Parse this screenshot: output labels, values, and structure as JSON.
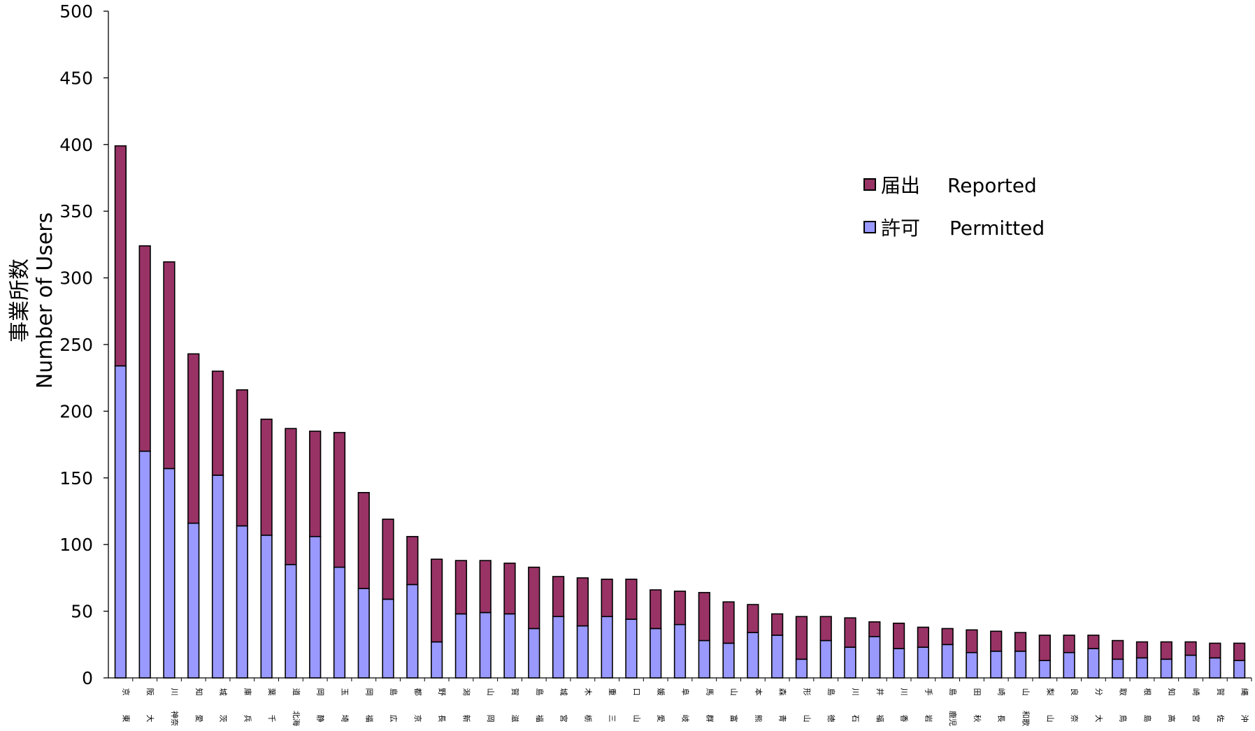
{
  "chart_data": {
    "type": "bar",
    "stacked": true,
    "ylabel_ja": "事業所数",
    "ylabel_en": "Number of Users",
    "xlabel": "",
    "ylim": [
      0,
      500
    ],
    "yticks": [
      0,
      50,
      100,
      150,
      200,
      250,
      300,
      350,
      400,
      450,
      500
    ],
    "grid": false,
    "legend_position": "top-right",
    "categories": [
      {
        "line1": "京",
        "line2": "東"
      },
      {
        "line1": "阪",
        "line2": "大"
      },
      {
        "line1": "川",
        "line2": "神奈"
      },
      {
        "line1": "知",
        "line2": "愛"
      },
      {
        "line1": "城",
        "line2": "茨"
      },
      {
        "line1": "庫",
        "line2": "兵"
      },
      {
        "line1": "葉",
        "line2": "千"
      },
      {
        "line1": "道",
        "line2": "北海"
      },
      {
        "line1": "岡",
        "line2": "静"
      },
      {
        "line1": "玉",
        "line2": "埼"
      },
      {
        "line1": "岡",
        "line2": "福"
      },
      {
        "line1": "島",
        "line2": "広"
      },
      {
        "line1": "都",
        "line2": "京"
      },
      {
        "line1": "野",
        "line2": "長"
      },
      {
        "line1": "潟",
        "line2": "新"
      },
      {
        "line1": "山",
        "line2": "岡"
      },
      {
        "line1": "賀",
        "line2": "滋"
      },
      {
        "line1": "島",
        "line2": "福"
      },
      {
        "line1": "城",
        "line2": "宮"
      },
      {
        "line1": "木",
        "line2": "栃"
      },
      {
        "line1": "重",
        "line2": "三"
      },
      {
        "line1": "口",
        "line2": "山"
      },
      {
        "line1": "媛",
        "line2": "愛"
      },
      {
        "line1": "阜",
        "line2": "岐"
      },
      {
        "line1": "馬",
        "line2": "群"
      },
      {
        "line1": "山",
        "line2": "富"
      },
      {
        "line1": "本",
        "line2": "熊"
      },
      {
        "line1": "森",
        "line2": "青"
      },
      {
        "line1": "形",
        "line2": "山"
      },
      {
        "line1": "島",
        "line2": "徳"
      },
      {
        "line1": "川",
        "line2": "石"
      },
      {
        "line1": "井",
        "line2": "福"
      },
      {
        "line1": "川",
        "line2": "香"
      },
      {
        "line1": "手",
        "line2": "岩"
      },
      {
        "line1": "島",
        "line2": "鹿児"
      },
      {
        "line1": "田",
        "line2": "秋"
      },
      {
        "line1": "崎",
        "line2": "長"
      },
      {
        "line1": "山",
        "line2": "和歌"
      },
      {
        "line1": "梨",
        "line2": "山"
      },
      {
        "line1": "良",
        "line2": "奈"
      },
      {
        "line1": "分",
        "line2": "大"
      },
      {
        "line1": "取",
        "line2": "鳥"
      },
      {
        "line1": "根",
        "line2": "島"
      },
      {
        "line1": "知",
        "line2": "高"
      },
      {
        "line1": "崎",
        "line2": "宮"
      },
      {
        "line1": "賀",
        "line2": "佐"
      },
      {
        "line1": "縄",
        "line2": "沖"
      }
    ],
    "series": [
      {
        "name_ja": "許可",
        "name_en": "Permitted",
        "color": "#9999ff",
        "values": [
          234,
          170,
          157,
          116,
          152,
          114,
          107,
          85,
          106,
          83,
          67,
          59,
          70,
          27,
          48,
          49,
          48,
          37,
          46,
          39,
          46,
          44,
          37,
          40,
          28,
          26,
          34,
          32,
          14,
          28,
          23,
          31,
          22,
          23,
          25,
          19,
          20,
          20,
          13,
          19,
          22,
          14,
          15,
          14,
          17,
          15,
          13
        ]
      },
      {
        "name_ja": "届出",
        "name_en": "Reported",
        "color": "#993366",
        "values": [
          165,
          154,
          155,
          127,
          78,
          102,
          87,
          102,
          79,
          101,
          72,
          60,
          36,
          62,
          40,
          39,
          38,
          46,
          30,
          36,
          28,
          30,
          29,
          25,
          36,
          31,
          21,
          16,
          32,
          18,
          22,
          11,
          19,
          15,
          12,
          17,
          15,
          14,
          19,
          13,
          10,
          14,
          12,
          13,
          10,
          11,
          13
        ]
      }
    ]
  }
}
